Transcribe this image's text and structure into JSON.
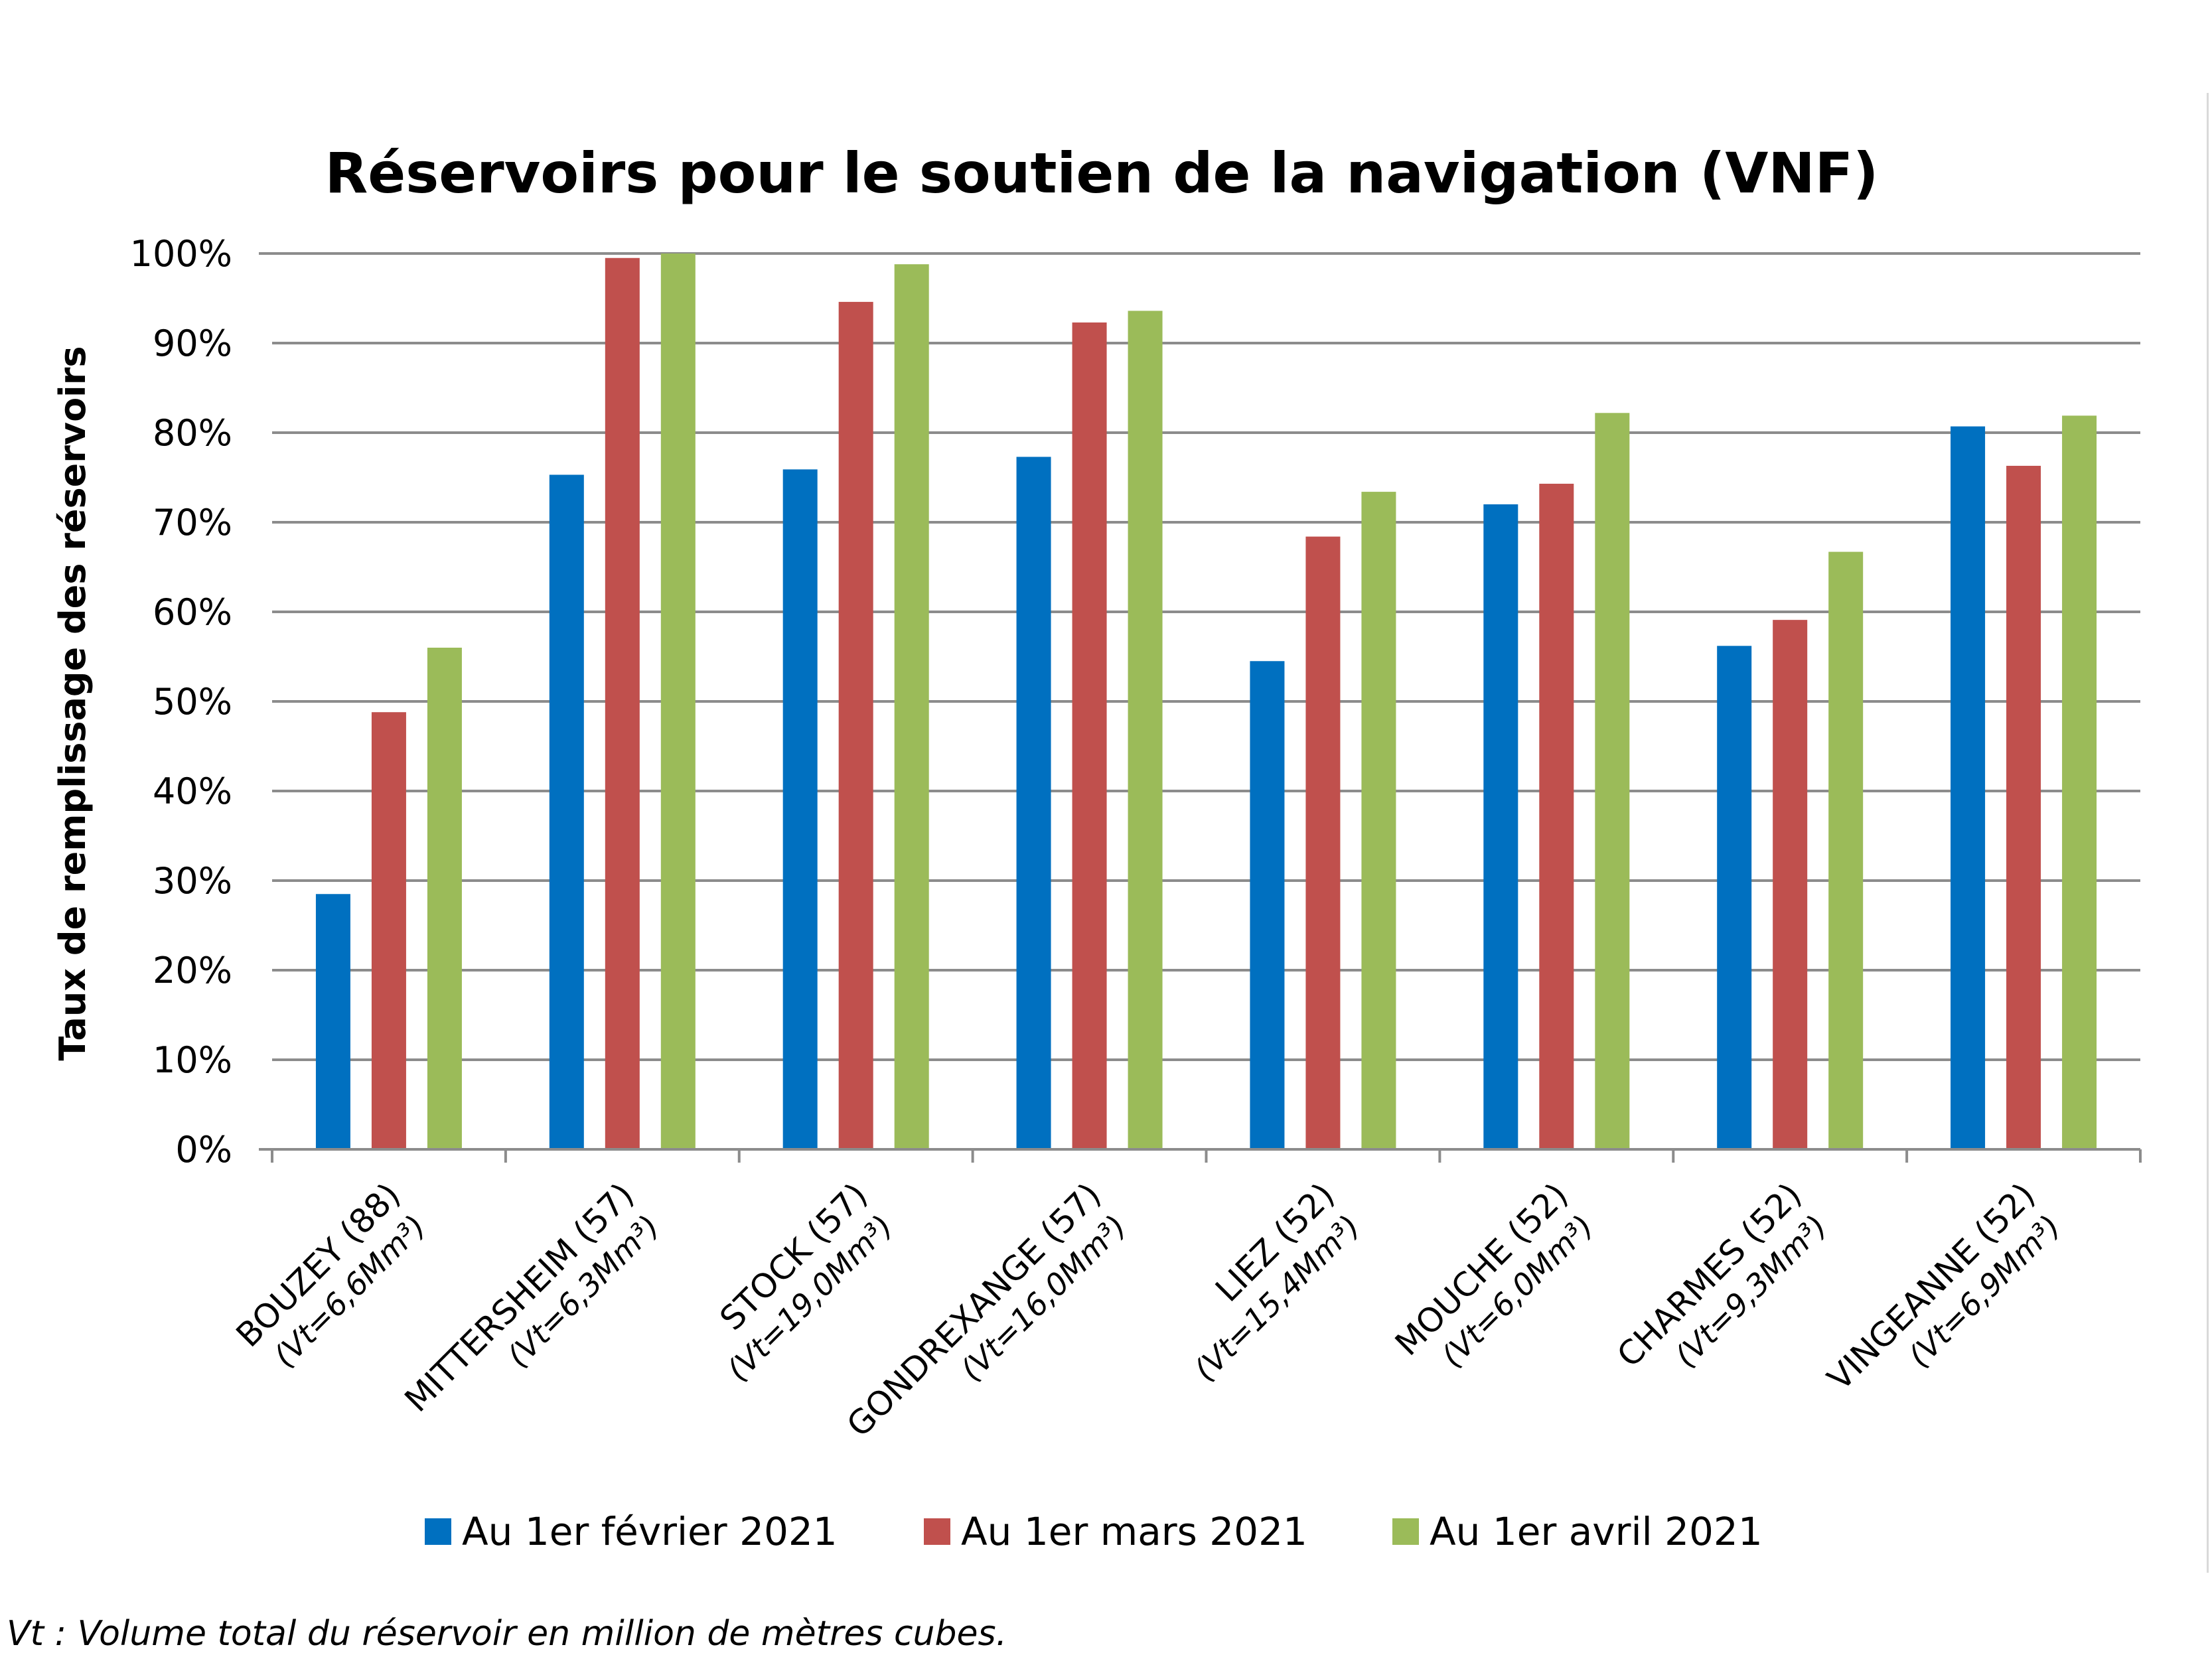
{
  "chart_data": {
    "type": "bar",
    "title": "Réservoirs pour le soutien de la navigation (VNF)",
    "ylabel": "Taux de remplissage des réservoirs",
    "xlabel": "",
    "ylim": [
      0,
      100
    ],
    "yticks": [
      "0%",
      "10%",
      "20%",
      "30%",
      "40%",
      "50%",
      "60%",
      "70%",
      "80%",
      "90%",
      "100%"
    ],
    "grid": true,
    "legend_position": "bottom",
    "categories": [
      {
        "name": "BOUZEY (88)",
        "vt": "(Vt=6,6Mm³)"
      },
      {
        "name": "MITTERSHEIM (57)",
        "vt": "(Vt=6,3Mm³)"
      },
      {
        "name": "STOCK (57)",
        "vt": "(Vt=19,0Mm³)"
      },
      {
        "name": "GONDREXANGE (57)",
        "vt": "(Vt=16,0Mm³)"
      },
      {
        "name": "LIEZ (52)",
        "vt": "(Vt=15,4Mm³)"
      },
      {
        "name": "MOUCHE (52)",
        "vt": "(Vt=6,0Mm³)"
      },
      {
        "name": "CHARMES (52)",
        "vt": "(Vt=9,3Mm³)"
      },
      {
        "name": "VINGEANNE (52)",
        "vt": "(Vt=6,9Mm³)"
      }
    ],
    "series": [
      {
        "name": "Au 1er février 2021",
        "color": "#0070C0",
        "values": [
          28.5,
          75.3,
          75.9,
          77.3,
          54.5,
          72.0,
          56.2,
          80.7
        ]
      },
      {
        "name": "Au 1er mars 2021",
        "color": "#C0504D",
        "values": [
          48.8,
          99.5,
          94.6,
          92.3,
          68.4,
          74.3,
          59.1,
          76.3
        ]
      },
      {
        "name": "Au 1er avril 2021",
        "color": "#9BBB59",
        "values": [
          56.0,
          100.0,
          98.8,
          93.6,
          73.4,
          82.2,
          66.7,
          81.9
        ]
      }
    ]
  },
  "footnote": "Vt : Volume total du réservoir en million de mètres cubes."
}
